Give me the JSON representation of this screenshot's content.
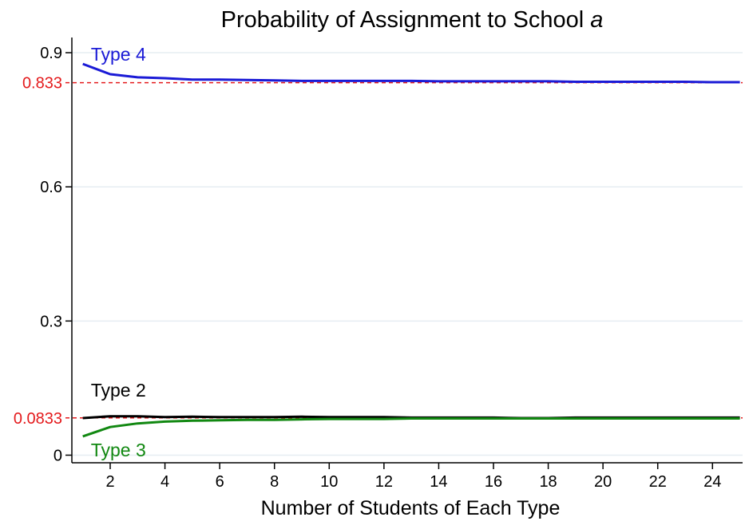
{
  "chart_data": {
    "type": "line",
    "title": "Probability of Assignment to School ",
    "title_italic": "a",
    "xlabel": "Number of Students of Each Type",
    "ylabel": "",
    "xlim": [
      0.6,
      25.1
    ],
    "ylim": [
      -0.017,
      0.934
    ],
    "x_ticks": [
      2,
      4,
      6,
      8,
      10,
      12,
      14,
      16,
      18,
      20,
      22,
      24
    ],
    "x_tick_labels": [
      "2",
      "4",
      "6",
      "8",
      "10",
      "12",
      "14",
      "16",
      "18",
      "20",
      "22",
      "24"
    ],
    "y_ticks": [
      0,
      0.3,
      0.6,
      0.9
    ],
    "y_tick_labels": [
      "0",
      "0.3",
      "0.6",
      "0.9"
    ],
    "grid": true,
    "reference_lines": [
      {
        "value": 0.833,
        "label": "0.833",
        "color": "#e41a1c",
        "style": "dashed"
      },
      {
        "value": 0.0833,
        "label": "0.0833",
        "color": "#e41a1c",
        "style": "dashed"
      }
    ],
    "series": [
      {
        "name": "Type 4",
        "color": "#1a1ad6",
        "x": [
          1,
          2,
          3,
          4,
          5,
          6,
          7,
          8,
          9,
          10,
          11,
          12,
          13,
          14,
          15,
          16,
          17,
          18,
          19,
          20,
          21,
          22,
          23,
          24,
          25
        ],
        "values": [
          0.875,
          0.852,
          0.845,
          0.843,
          0.84,
          0.84,
          0.839,
          0.838,
          0.837,
          0.837,
          0.837,
          0.837,
          0.837,
          0.836,
          0.836,
          0.836,
          0.836,
          0.836,
          0.835,
          0.835,
          0.835,
          0.835,
          0.835,
          0.834,
          0.834
        ]
      },
      {
        "name": "Type 2",
        "color": "#000000",
        "x": [
          1,
          2,
          3,
          4,
          5,
          6,
          7,
          8,
          9,
          10,
          11,
          12,
          13,
          14,
          15,
          16,
          17,
          18,
          19,
          20,
          21,
          22,
          23,
          24,
          25
        ],
        "values": [
          0.083,
          0.087,
          0.087,
          0.085,
          0.086,
          0.085,
          0.085,
          0.085,
          0.086,
          0.085,
          0.085,
          0.085,
          0.084,
          0.084,
          0.084,
          0.084,
          0.083,
          0.083,
          0.084,
          0.084,
          0.084,
          0.084,
          0.084,
          0.084,
          0.084
        ]
      },
      {
        "name": "Type 3",
        "color": "#118811",
        "x": [
          1,
          2,
          3,
          4,
          5,
          6,
          7,
          8,
          9,
          10,
          11,
          12,
          13,
          14,
          15,
          16,
          17,
          18,
          19,
          20,
          21,
          22,
          23,
          24,
          25
        ],
        "values": [
          0.042,
          0.063,
          0.071,
          0.075,
          0.077,
          0.078,
          0.079,
          0.079,
          0.08,
          0.081,
          0.081,
          0.081,
          0.082,
          0.082,
          0.082,
          0.082,
          0.082,
          0.082,
          0.082,
          0.082,
          0.082,
          0.082,
          0.082,
          0.082,
          0.082
        ]
      }
    ]
  }
}
